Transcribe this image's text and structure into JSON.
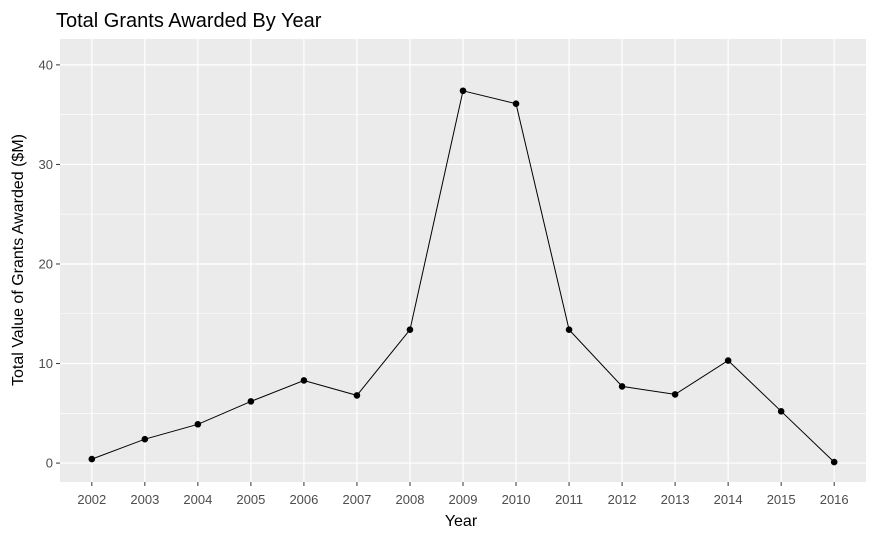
{
  "chart_data": {
    "type": "line",
    "title": "Total Grants Awarded By Year",
    "xlabel": "Year",
    "ylabel": "Total Value of Grants Awarded ($M)",
    "x": [
      2002,
      2003,
      2004,
      2005,
      2006,
      2007,
      2008,
      2009,
      2010,
      2011,
      2012,
      2013,
      2014,
      2015,
      2016
    ],
    "series": [
      {
        "values": [
          0.4,
          2.4,
          3.9,
          6.2,
          8.3,
          6.8,
          13.4,
          37.4,
          36.1,
          13.4,
          7.7,
          6.9,
          10.3,
          5.2,
          0.1
        ]
      }
    ],
    "ylim": [
      -1.9,
      42.6
    ],
    "y_ticks": [
      0,
      10,
      20,
      30,
      40
    ],
    "grid": true,
    "markers": true,
    "colors": {
      "panel": "#ebebeb",
      "grid": "#ffffff",
      "line": "#000000",
      "point": "#000000"
    }
  }
}
